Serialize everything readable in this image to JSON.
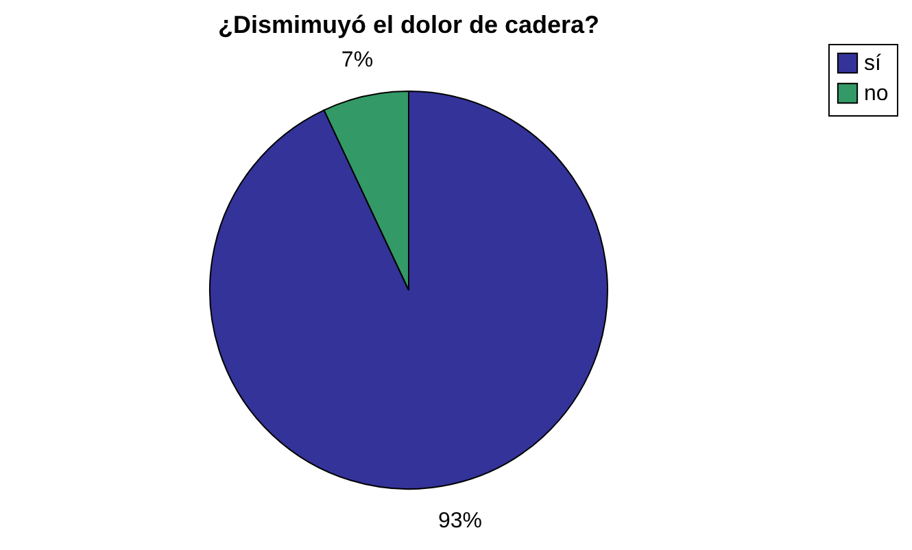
{
  "chart_data": {
    "type": "pie",
    "title": "¿Dismimuyó el dolor de cadera?",
    "categories": [
      "sí",
      "no"
    ],
    "values": [
      93,
      7
    ],
    "colors": [
      "#333399",
      "#339966"
    ],
    "value_labels": [
      "93%",
      "7%"
    ],
    "legend": "right"
  }
}
